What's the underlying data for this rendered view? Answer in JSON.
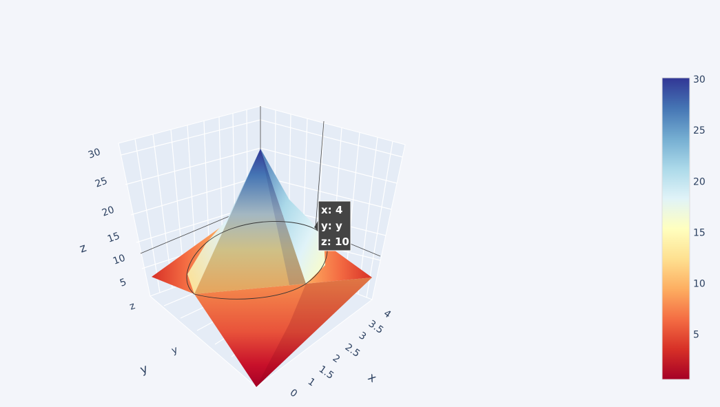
{
  "chart_data": {
    "type": "surface",
    "colorscale": "RdYlBu",
    "colorscale_stops": [
      "#a50026",
      "#d73027",
      "#f46d43",
      "#fdae61",
      "#fee090",
      "#ffffbf",
      "#e0f3f8",
      "#abd9e9",
      "#74add1",
      "#4575b4",
      "#313695"
    ],
    "color_range": [
      1,
      30
    ],
    "colorbar_ticks": [
      "30",
      "25",
      "20",
      "15",
      "10",
      "5"
    ],
    "x_axis": {
      "title": "x",
      "ticks": [
        "4",
        "3.5",
        "3",
        "2.5",
        "2",
        "1.5",
        "1",
        "0"
      ]
    },
    "y_axis": {
      "title": "y",
      "ticks": [
        "y"
      ]
    },
    "z_axis": {
      "title": "z",
      "ticks": [
        "30",
        "25",
        "20",
        "15",
        "10",
        "5",
        "z"
      ]
    },
    "surface_shape": "cone",
    "contour_ring_z": 10,
    "peak_z": 30
  },
  "hover": {
    "x": "x: 4",
    "y": "y: y",
    "z": "z: 10"
  }
}
